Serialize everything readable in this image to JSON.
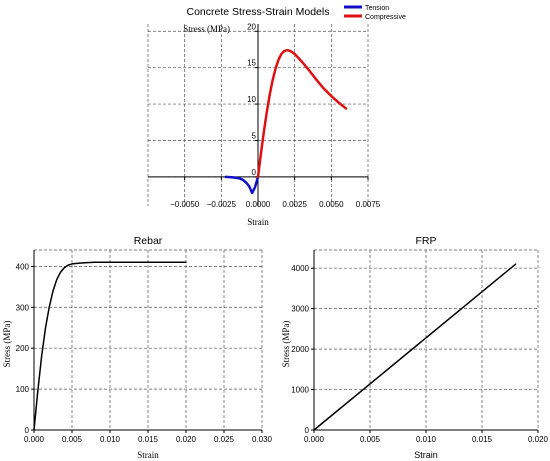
{
  "chart_data": [
    {
      "type": "line",
      "title": "Concrete Stress-Strain Models",
      "xlabel": "Strain",
      "ylabel": "Stress (MPa)",
      "xlim": [
        -0.0075,
        0.0075
      ],
      "ylim": [
        -4,
        21
      ],
      "xticks": [
        -0.005,
        -0.0025,
        0.0,
        0.0025,
        0.005,
        0.0075
      ],
      "xtick_labels": [
        "−0.0050",
        "−0.0025",
        "0.0000",
        "0.0025",
        "0.0050",
        "0.0075"
      ],
      "yticks": [
        0,
        5,
        10,
        15,
        20
      ],
      "ytick_labels": [
        "0",
        "5",
        "10",
        "15",
        "20"
      ],
      "grid": true,
      "legend_position": "top-right",
      "series": [
        {
          "name": "Tension",
          "color": "#1010c8",
          "x": [
            -0.0022,
            -0.0018,
            -0.0015,
            -0.0012,
            -0.001,
            -0.0008,
            -0.0006,
            -0.0004,
            -0.0002,
            0.0
          ],
          "y": [
            0,
            -0.05,
            -0.12,
            -0.25,
            -0.45,
            -0.8,
            -1.3,
            -2.2,
            -1.4,
            0
          ]
        },
        {
          "name": "Compressive",
          "color": "#dd1111",
          "x": [
            0.0,
            0.0002,
            0.0004,
            0.0006,
            0.0008,
            0.001,
            0.0012,
            0.0014,
            0.0016,
            0.0018,
            0.002,
            0.0022,
            0.0025,
            0.003,
            0.0035,
            0.004,
            0.0045,
            0.005,
            0.0055,
            0.006
          ],
          "y": [
            0,
            3.2,
            6.2,
            8.9,
            11.3,
            13.3,
            14.9,
            16.1,
            16.9,
            17.3,
            17.4,
            17.3,
            16.9,
            15.8,
            14.6,
            13.3,
            12.1,
            11.1,
            10.2,
            9.4
          ]
        }
      ]
    },
    {
      "type": "line",
      "title": "Rebar",
      "xlabel": "Strain",
      "ylabel": "Stress (MPa)",
      "xlim": [
        0,
        0.03
      ],
      "ylim": [
        0,
        440
      ],
      "xticks": [
        0,
        0.005,
        0.01,
        0.015,
        0.02,
        0.025,
        0.03
      ],
      "xtick_labels": [
        "0.000",
        "0.005",
        "0.010",
        "0.015",
        "0.020",
        "0.025",
        "0.030"
      ],
      "yticks": [
        0,
        100,
        200,
        300,
        400
      ],
      "ytick_labels": [
        "0",
        "100",
        "200",
        "300",
        "400"
      ],
      "grid": true,
      "series": [
        {
          "color": "#000000",
          "x": [
            0,
            0.0005,
            0.001,
            0.0015,
            0.002,
            0.0025,
            0.003,
            0.0035,
            0.004,
            0.0045,
            0.005,
            0.006,
            0.007,
            0.008,
            0.01,
            0.015,
            0.02
          ],
          "y": [
            0,
            95,
            180,
            248,
            300,
            340,
            368,
            386,
            397,
            403,
            406,
            408,
            409,
            410,
            410,
            410,
            410
          ]
        }
      ]
    },
    {
      "type": "line",
      "title": "FRP",
      "xlabel": "Strain",
      "ylabel": "Stress (MPa)",
      "xlim": [
        0,
        0.02
      ],
      "ylim": [
        0,
        4450
      ],
      "xticks": [
        0,
        0.005,
        0.01,
        0.015,
        0.02
      ],
      "xtick_labels": [
        "0.000",
        "0.005",
        "0.010",
        "0.015",
        "0.020"
      ],
      "yticks": [
        0,
        1000,
        2000,
        3000,
        4000
      ],
      "ytick_labels": [
        "0",
        "1000",
        "2000",
        "3000",
        "4000"
      ],
      "grid": true,
      "series": [
        {
          "color": "#000000",
          "x": [
            0,
            0.018
          ],
          "y": [
            0,
            4100
          ]
        }
      ]
    }
  ]
}
